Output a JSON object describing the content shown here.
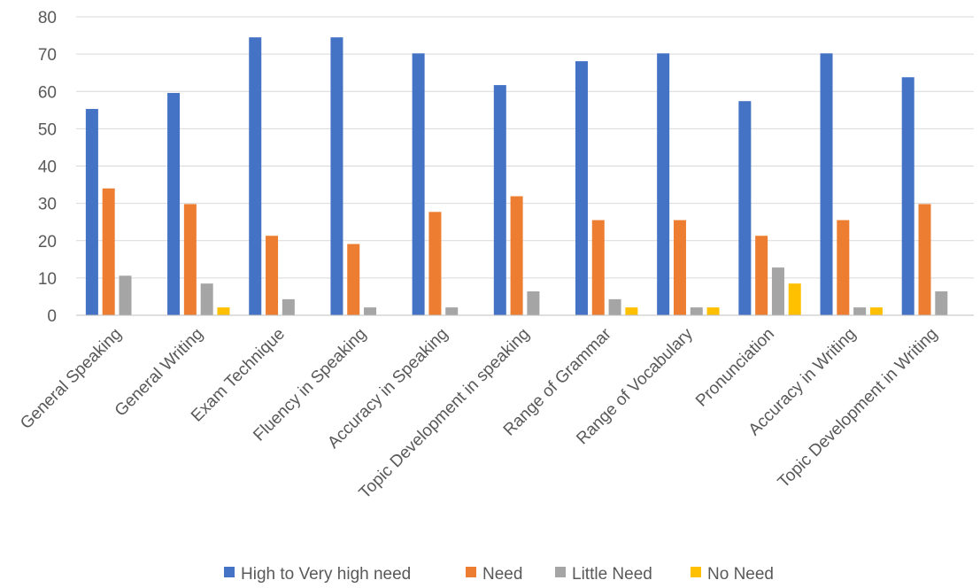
{
  "colors": {
    "grid": "#d9d9d9",
    "axis": "#bfbfbf",
    "text": "#595959"
  },
  "chart_data": {
    "type": "bar",
    "title": "",
    "xlabel": "",
    "ylabel": "",
    "ylim": [
      0,
      80
    ],
    "yticks": [
      0,
      10,
      20,
      30,
      40,
      50,
      60,
      70,
      80
    ],
    "grid": true,
    "legend_position": "bottom",
    "categories": [
      "General Speaking",
      "General Writing",
      "Exam Technique",
      "Fluency in Speaking",
      "Accuracy in Speaking",
      "Topic Development in speaking",
      "Range of Grammar",
      "Range of Vocabulary",
      "Pronunciation",
      "Accuracy in Writing",
      "Topic Development in Writing"
    ],
    "series": [
      {
        "name": "High to Very high need",
        "color": "#4472c4",
        "values": [
          55.3,
          59.6,
          74.5,
          74.5,
          70.2,
          61.7,
          68.1,
          70.2,
          57.4,
          70.2,
          63.8
        ]
      },
      {
        "name": "Need",
        "color": "#ed7d31",
        "values": [
          34.0,
          29.8,
          21.3,
          19.1,
          27.7,
          31.9,
          25.5,
          25.5,
          21.3,
          25.5,
          29.8
        ]
      },
      {
        "name": "Little Need",
        "color": "#a5a5a5",
        "values": [
          10.6,
          8.5,
          4.3,
          2.1,
          2.1,
          6.4,
          4.3,
          2.1,
          12.8,
          2.1,
          6.4
        ]
      },
      {
        "name": "No Need",
        "color": "#ffc000",
        "values": [
          0,
          2.1,
          0,
          0,
          0,
          0,
          2.1,
          2.1,
          8.5,
          2.1,
          0
        ]
      }
    ]
  }
}
